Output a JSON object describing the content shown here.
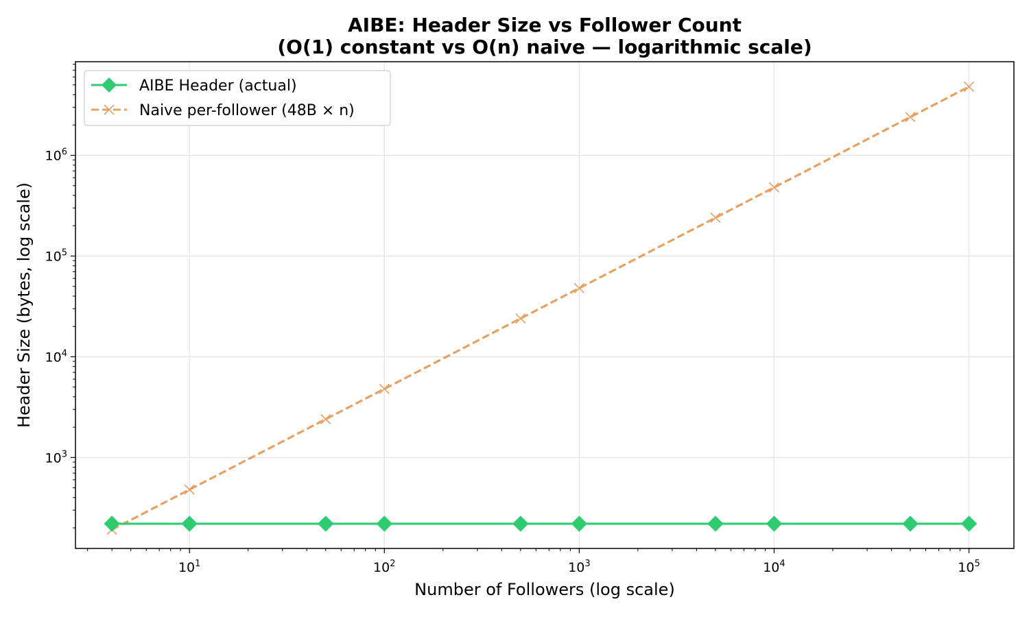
{
  "chart_data": {
    "type": "line",
    "title": "AIBE: Header Size vs Follower Count",
    "subtitle": "(O(1) constant vs O(n) naive — logarithmic scale)",
    "xlabel": "Number of Followers (log scale)",
    "ylabel": "Header Size (bytes, log scale)",
    "x_scale": "log",
    "y_scale": "log",
    "xlim": [
      2.6,
      170000
    ],
    "ylim": [
      125,
      8500000
    ],
    "x_ticks": [
      {
        "base": "10",
        "exp": "1",
        "value": 10
      },
      {
        "base": "10",
        "exp": "2",
        "value": 100
      },
      {
        "base": "10",
        "exp": "3",
        "value": 1000
      },
      {
        "base": "10",
        "exp": "4",
        "value": 10000
      },
      {
        "base": "10",
        "exp": "5",
        "value": 100000
      }
    ],
    "y_ticks": [
      {
        "base": "10",
        "exp": "3",
        "value": 1000
      },
      {
        "base": "10",
        "exp": "4",
        "value": 10000
      },
      {
        "base": "10",
        "exp": "5",
        "value": 100000
      },
      {
        "base": "10",
        "exp": "6",
        "value": 1000000
      }
    ],
    "grid": true,
    "legend_position": "top-left",
    "x": [
      4,
      10,
      50,
      100,
      500,
      1000,
      5000,
      10000,
      50000,
      100000
    ],
    "series": [
      {
        "name": "AIBE Header (actual)",
        "values": [
          220,
          220,
          220,
          220,
          220,
          220,
          220,
          220,
          220,
          220
        ],
        "color": "#2ecc71",
        "line_style": "solid",
        "marker": "diamond"
      },
      {
        "name": "Naive per-follower (48B × n)",
        "values": [
          192,
          480,
          2400,
          4800,
          24000,
          48000,
          240000,
          480000,
          2400000,
          4800000
        ],
        "color": "#e8a060",
        "line_style": "dashed",
        "marker": "x"
      }
    ]
  }
}
